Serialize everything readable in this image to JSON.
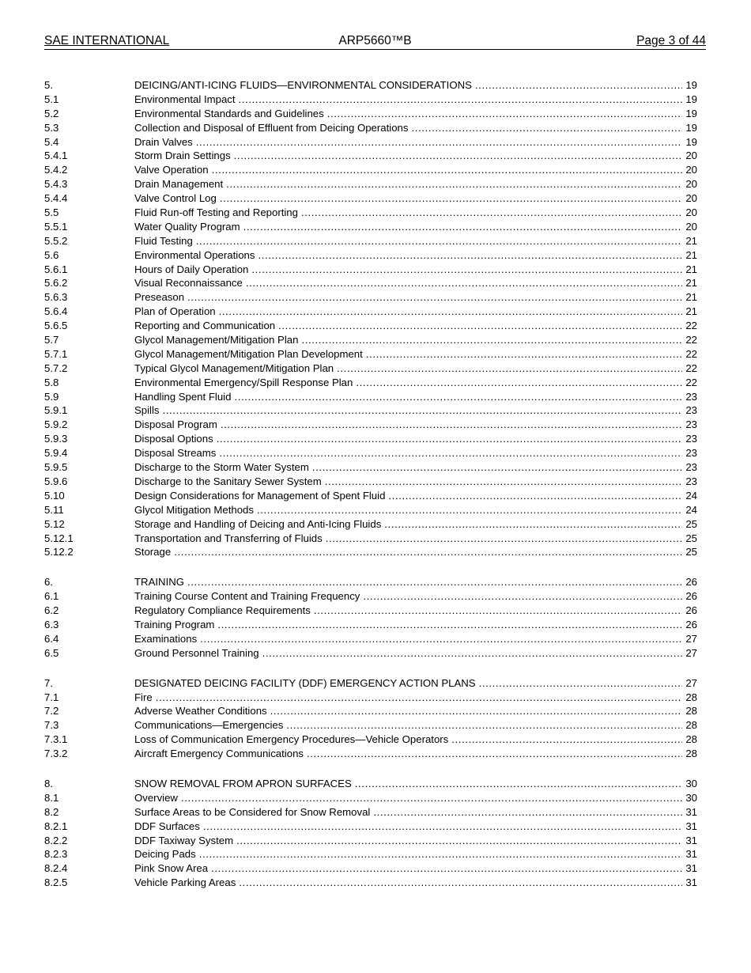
{
  "header": {
    "left": "SAE INTERNATIONAL",
    "center": "ARP5660™B",
    "right": "Page 3 of 44"
  },
  "toc": {
    "sections": [
      {
        "entries": [
          {
            "num": "5.",
            "title": "DEICING/ANTI-ICING FLUIDS—ENVIRONMENTAL CONSIDERATIONS",
            "page": "19"
          },
          {
            "num": "5.1",
            "title": "Environmental Impact",
            "page": "19"
          },
          {
            "num": "5.2",
            "title": "Environmental Standards and Guidelines",
            "page": "19"
          },
          {
            "num": "5.3",
            "title": "Collection and Disposal of Effluent from Deicing Operations",
            "page": "19"
          },
          {
            "num": "5.4",
            "title": "Drain Valves",
            "page": "19"
          },
          {
            "num": "5.4.1",
            "title": "Storm Drain Settings",
            "page": "20"
          },
          {
            "num": "5.4.2",
            "title": "Valve Operation",
            "page": "20"
          },
          {
            "num": "5.4.3",
            "title": "Drain Management",
            "page": "20"
          },
          {
            "num": "5.4.4",
            "title": "Valve Control Log",
            "page": "20"
          },
          {
            "num": "5.5",
            "title": "Fluid Run-off Testing and Reporting",
            "page": "20"
          },
          {
            "num": "5.5.1",
            "title": "Water Quality Program",
            "page": "20"
          },
          {
            "num": "5.5.2",
            "title": "Fluid Testing",
            "page": "21"
          },
          {
            "num": "5.6",
            "title": "Environmental Operations",
            "page": "21"
          },
          {
            "num": "5.6.1",
            "title": "Hours of Daily Operation",
            "page": "21"
          },
          {
            "num": "5.6.2",
            "title": "Visual Reconnaissance",
            "page": "21"
          },
          {
            "num": "5.6.3",
            "title": "Preseason",
            "page": "21"
          },
          {
            "num": "5.6.4",
            "title": "Plan of Operation",
            "page": "21"
          },
          {
            "num": "5.6.5",
            "title": "Reporting and Communication",
            "page": "22"
          },
          {
            "num": "5.7",
            "title": "Glycol Management/Mitigation Plan",
            "page": "22"
          },
          {
            "num": "5.7.1",
            "title": "Glycol Management/Mitigation Plan Development",
            "page": "22"
          },
          {
            "num": "5.7.2",
            "title": "Typical Glycol Management/Mitigation Plan",
            "page": "22"
          },
          {
            "num": "5.8",
            "title": "Environmental Emergency/Spill Response Plan",
            "page": "22"
          },
          {
            "num": "5.9",
            "title": "Handling Spent Fluid",
            "page": "23"
          },
          {
            "num": "5.9.1",
            "title": "Spills",
            "page": "23"
          },
          {
            "num": "5.9.2",
            "title": "Disposal Program",
            "page": "23"
          },
          {
            "num": "5.9.3",
            "title": "Disposal Options",
            "page": "23"
          },
          {
            "num": "5.9.4",
            "title": "Disposal Streams",
            "page": "23"
          },
          {
            "num": "5.9.5",
            "title": "Discharge to the Storm Water System",
            "page": "23"
          },
          {
            "num": "5.9.6",
            "title": "Discharge to the Sanitary Sewer System",
            "page": "23"
          },
          {
            "num": "5.10",
            "title": "Design Considerations for Management of Spent Fluid",
            "page": "24"
          },
          {
            "num": "5.11",
            "title": "Glycol Mitigation Methods",
            "page": "24"
          },
          {
            "num": "5.12",
            "title": "Storage and Handling of Deicing and Anti-Icing Fluids",
            "page": "25"
          },
          {
            "num": "5.12.1",
            "title": "Transportation and Transferring of Fluids",
            "page": "25"
          },
          {
            "num": "5.12.2",
            "title": "Storage",
            "page": "25"
          }
        ]
      },
      {
        "entries": [
          {
            "num": "6.",
            "title": "TRAINING",
            "page": "26"
          },
          {
            "num": "6.1",
            "title": "Training Course Content and Training Frequency",
            "page": "26"
          },
          {
            "num": "6.2",
            "title": "Regulatory Compliance Requirements",
            "page": "26"
          },
          {
            "num": "6.3",
            "title": "Training Program",
            "page": "26"
          },
          {
            "num": "6.4",
            "title": "Examinations",
            "page": "27"
          },
          {
            "num": "6.5",
            "title": "Ground Personnel Training",
            "page": "27"
          }
        ]
      },
      {
        "entries": [
          {
            "num": "7.",
            "title": "DESIGNATED DEICING FACILITY (DDF) EMERGENCY ACTION PLANS",
            "page": "27"
          },
          {
            "num": "7.1",
            "title": "Fire",
            "page": "28"
          },
          {
            "num": "7.2",
            "title": "Adverse Weather Conditions",
            "page": "28"
          },
          {
            "num": "7.3",
            "title": "Communications—Emergencies",
            "page": "28"
          },
          {
            "num": "7.3.1",
            "title": "Loss of Communication Emergency Procedures—Vehicle Operators",
            "page": "28"
          },
          {
            "num": "7.3.2",
            "title": "Aircraft Emergency Communications",
            "page": "28"
          }
        ]
      },
      {
        "entries": [
          {
            "num": "8.",
            "title": "SNOW REMOVAL FROM APRON SURFACES",
            "page": "30"
          },
          {
            "num": "8.1",
            "title": "Overview",
            "page": "30"
          },
          {
            "num": "8.2",
            "title": "Surface Areas to be Considered for Snow Removal",
            "page": "31"
          },
          {
            "num": "8.2.1",
            "title": "DDF Surfaces",
            "page": "31"
          },
          {
            "num": "8.2.2",
            "title": "DDF Taxiway System",
            "page": "31"
          },
          {
            "num": "8.2.3",
            "title": "Deicing Pads",
            "page": "31"
          },
          {
            "num": "8.2.4",
            "title": "Pink Snow Area",
            "page": "31"
          },
          {
            "num": "8.2.5",
            "title": "Vehicle Parking Areas",
            "page": "31"
          }
        ]
      }
    ]
  }
}
